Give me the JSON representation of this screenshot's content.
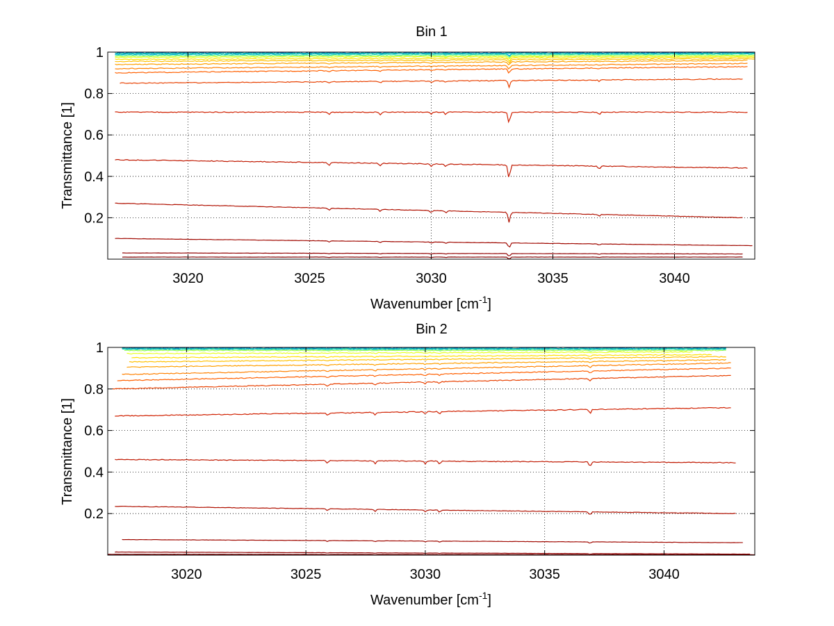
{
  "chart_data": [
    {
      "type": "line",
      "title": "Bin 1",
      "xlabel": "Wavenumber [cm",
      "xlabel_sup": "-1",
      "xlabel_end": "]",
      "ylabel": "Transmittance [1]",
      "xlim": [
        3016.7,
        3043.3
      ],
      "ylim": [
        0.0,
        1.0
      ],
      "xticks": [
        3020,
        3025,
        3030,
        3035,
        3040
      ],
      "yticks": [
        0.2,
        0.4,
        0.6,
        0.8,
        1
      ],
      "xtick_labels": [
        "3020",
        "3025",
        "3030",
        "3035",
        "3040"
      ],
      "ytick_labels": [
        "0.2",
        "0.4",
        "0.6",
        "0.8",
        "1"
      ],
      "grid": true,
      "colormap": [
        "#00008f",
        "#0070ff",
        "#00d0ff",
        "#60ff9f",
        "#d0ff30",
        "#ffd000",
        "#ff9000",
        "#ff5000",
        "#d02000",
        "#800000"
      ],
      "absorption_lines": [
        3025.8,
        3027.9,
        3030.0,
        3030.6,
        3033.2,
        3036.9
      ],
      "series_baselines": [
        {
          "x_start": 3017.0,
          "x_end": 3043.3,
          "y_start": 0.99,
          "y_end": 0.995,
          "color": "#00a8e0"
        },
        {
          "x_start": 3017.0,
          "x_end": 3043.3,
          "y_start": 0.985,
          "y_end": 0.99,
          "color": "#40e8c0"
        },
        {
          "x_start": 3017.0,
          "x_end": 3043.3,
          "y_start": 0.98,
          "y_end": 0.985,
          "color": "#b0ff50"
        },
        {
          "x_start": 3017.0,
          "x_end": 3043.3,
          "y_start": 0.975,
          "y_end": 0.98,
          "color": "#e8ff20"
        },
        {
          "x_start": 3017.0,
          "x_end": 3043.3,
          "y_start": 0.965,
          "y_end": 0.975,
          "color": "#ffe000"
        },
        {
          "x_start": 3017.0,
          "x_end": 3043.3,
          "y_start": 0.955,
          "y_end": 0.968,
          "color": "#ffc000"
        },
        {
          "x_start": 3017.0,
          "x_end": 3043.0,
          "y_start": 0.94,
          "y_end": 0.96,
          "color": "#ffa000"
        },
        {
          "x_start": 3017.0,
          "x_end": 3043.0,
          "y_start": 0.92,
          "y_end": 0.945,
          "color": "#ff8000"
        },
        {
          "x_start": 3017.0,
          "x_end": 3043.0,
          "y_start": 0.9,
          "y_end": 0.93,
          "color": "#ff6000"
        },
        {
          "x_start": 3017.2,
          "x_end": 3042.8,
          "y_start": 0.85,
          "y_end": 0.87,
          "color": "#e84000"
        },
        {
          "x_start": 3017.0,
          "x_end": 3043.0,
          "y_start": 0.71,
          "y_end": 0.71,
          "color": "#d02000"
        },
        {
          "x_start": 3017.0,
          "x_end": 3043.0,
          "y_start": 0.48,
          "y_end": 0.44,
          "color": "#c01800"
        },
        {
          "x_start": 3017.0,
          "x_end": 3042.8,
          "y_start": 0.27,
          "y_end": 0.2,
          "color": "#b01000"
        },
        {
          "x_start": 3017.0,
          "x_end": 3043.2,
          "y_start": 0.1,
          "y_end": 0.065,
          "color": "#a00800"
        },
        {
          "x_start": 3017.3,
          "x_end": 3042.8,
          "y_start": 0.03,
          "y_end": 0.025,
          "color": "#900000"
        },
        {
          "x_start": 3017.3,
          "x_end": 3042.8,
          "y_start": 0.01,
          "y_end": 0.01,
          "color": "#800000"
        }
      ]
    },
    {
      "type": "line",
      "title": "Bin 2",
      "xlabel": "Wavenumber [cm",
      "xlabel_sup": "-1",
      "xlabel_end": "]",
      "ylabel": "Transmittance [1]",
      "xlim": [
        3016.7,
        3043.8
      ],
      "ylim": [
        0.0,
        1.0
      ],
      "xticks": [
        3020,
        3025,
        3030,
        3035,
        3040
      ],
      "yticks": [
        0.2,
        0.4,
        0.6,
        0.8,
        1
      ],
      "xtick_labels": [
        "3020",
        "3025",
        "3030",
        "3035",
        "3040"
      ],
      "ytick_labels": [
        "0.2",
        "0.4",
        "0.6",
        "0.8",
        "1"
      ],
      "grid": true,
      "colormap": [
        "#00008f",
        "#0070ff",
        "#00d0ff",
        "#60ff9f",
        "#d0ff30",
        "#ffd000",
        "#ff9000",
        "#ff5000",
        "#d02000",
        "#800000"
      ],
      "absorption_lines": [
        3025.9,
        3027.9,
        3030.0,
        3030.6,
        3036.9
      ],
      "series_baselines": [
        {
          "x_start": 3017.3,
          "x_end": 3042.6,
          "y_start": 0.995,
          "y_end": 0.995,
          "color": "#00a8e0"
        },
        {
          "x_start": 3017.3,
          "x_end": 3042.6,
          "y_start": 0.99,
          "y_end": 0.99,
          "color": "#40e8c0"
        },
        {
          "x_start": 3017.4,
          "x_end": 3042.6,
          "y_start": 0.985,
          "y_end": 0.985,
          "color": "#b0ff50"
        },
        {
          "x_start": 3017.5,
          "x_end": 3041.2,
          "y_start": 0.97,
          "y_end": 0.978,
          "color": "#e8ff20"
        },
        {
          "x_start": 3017.7,
          "x_end": 3042.0,
          "y_start": 0.95,
          "y_end": 0.965,
          "color": "#ffe000"
        },
        {
          "x_start": 3017.6,
          "x_end": 3042.6,
          "y_start": 0.93,
          "y_end": 0.955,
          "color": "#ffc000"
        },
        {
          "x_start": 3017.5,
          "x_end": 3042.6,
          "y_start": 0.905,
          "y_end": 0.94,
          "color": "#ffa000"
        },
        {
          "x_start": 3017.3,
          "x_end": 3042.8,
          "y_start": 0.87,
          "y_end": 0.925,
          "color": "#ff8000"
        },
        {
          "x_start": 3017.1,
          "x_end": 3042.8,
          "y_start": 0.84,
          "y_end": 0.9,
          "color": "#ff6000"
        },
        {
          "x_start": 3016.9,
          "x_end": 3042.8,
          "y_start": 0.8,
          "y_end": 0.865,
          "color": "#e84000"
        },
        {
          "x_start": 3017.0,
          "x_end": 3042.8,
          "y_start": 0.67,
          "y_end": 0.71,
          "color": "#d02000"
        },
        {
          "x_start": 3017.0,
          "x_end": 3043.0,
          "y_start": 0.46,
          "y_end": 0.445,
          "color": "#c01800"
        },
        {
          "x_start": 3017.0,
          "x_end": 3043.0,
          "y_start": 0.235,
          "y_end": 0.2,
          "color": "#b01000"
        },
        {
          "x_start": 3017.3,
          "x_end": 3043.3,
          "y_start": 0.075,
          "y_end": 0.06,
          "color": "#a00800"
        },
        {
          "x_start": 3017.0,
          "x_end": 3043.6,
          "y_start": 0.015,
          "y_end": 0.005,
          "color": "#900000"
        },
        {
          "x_start": 3016.7,
          "x_end": 3043.8,
          "y_start": 0.004,
          "y_end": 0.002,
          "color": "#800000"
        }
      ]
    }
  ]
}
